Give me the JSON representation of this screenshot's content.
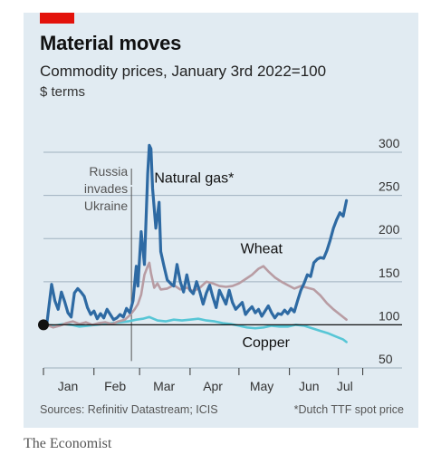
{
  "header": {
    "title": "Material moves",
    "subtitle": "Commodity prices, January 3rd 2022=100",
    "unit": "$ terms"
  },
  "footer": {
    "sources": "Sources: Refinitiv Datastream; ICIS",
    "note": "*Dutch TTF spot price"
  },
  "brand": "The Economist",
  "colors": {
    "background": "#e1ebf2",
    "accent": "#e3120b",
    "natural_gas": "#2e6aa3",
    "wheat": "#b89ca3",
    "copper": "#57c6d6"
  },
  "chart_data": {
    "type": "line",
    "title": "Material moves",
    "subtitle": "Commodity prices, January 3rd 2022=100",
    "ylabel": "$ terms",
    "xlabel": "",
    "ylim": [
      50,
      320
    ],
    "xlim": [
      "2022-01-01",
      "2022-07-19"
    ],
    "yticks": [
      50,
      100,
      150,
      200,
      250,
      300
    ],
    "xticks": [
      {
        "label": "Jan",
        "date": "2022-01-16"
      },
      {
        "label": "Feb",
        "date": "2022-02-14"
      },
      {
        "label": "Mar",
        "date": "2022-03-16"
      },
      {
        "label": "Apr",
        "date": "2022-04-15"
      },
      {
        "label": "May",
        "date": "2022-05-15"
      },
      {
        "label": "Jun",
        "date": "2022-06-13"
      },
      {
        "label": "Jul",
        "date": "2022-07-05"
      }
    ],
    "month_boundaries": [
      "2022-01-01",
      "2022-02-01",
      "2022-03-01",
      "2022-04-01",
      "2022-05-01",
      "2022-06-01",
      "2022-07-01"
    ],
    "grid": true,
    "baseline": 100,
    "annotations": [
      {
        "text": [
          "Russia",
          "invades",
          "Ukraine"
        ],
        "date": "2022-02-24"
      }
    ],
    "series": [
      {
        "name": "Natural gas*",
        "color": "#2e6aa3",
        "points": [
          [
            "2022-01-03",
            100
          ],
          [
            "2022-01-06",
            147
          ],
          [
            "2022-01-08",
            128
          ],
          [
            "2022-01-10",
            118
          ],
          [
            "2022-01-12",
            138
          ],
          [
            "2022-01-14",
            127
          ],
          [
            "2022-01-16",
            114
          ],
          [
            "2022-01-18",
            109
          ],
          [
            "2022-01-20",
            137
          ],
          [
            "2022-01-22",
            142
          ],
          [
            "2022-01-24",
            138
          ],
          [
            "2022-01-26",
            133
          ],
          [
            "2022-01-28",
            120
          ],
          [
            "2022-01-30",
            112
          ],
          [
            "2022-02-01",
            116
          ],
          [
            "2022-02-03",
            107
          ],
          [
            "2022-02-05",
            113
          ],
          [
            "2022-02-07",
            108
          ],
          [
            "2022-02-09",
            118
          ],
          [
            "2022-02-11",
            112
          ],
          [
            "2022-02-13",
            106
          ],
          [
            "2022-02-15",
            108
          ],
          [
            "2022-02-17",
            112
          ],
          [
            "2022-02-19",
            109
          ],
          [
            "2022-02-21",
            119
          ],
          [
            "2022-02-23",
            114
          ],
          [
            "2022-02-25",
            128
          ],
          [
            "2022-02-27",
            168
          ],
          [
            "2022-02-28",
            145
          ],
          [
            "2022-03-02",
            208
          ],
          [
            "2022-03-04",
            170
          ],
          [
            "2022-03-06",
            275
          ],
          [
            "2022-03-07",
            308
          ],
          [
            "2022-03-08",
            304
          ],
          [
            "2022-03-09",
            258
          ],
          [
            "2022-03-11",
            212
          ],
          [
            "2022-03-13",
            242
          ],
          [
            "2022-03-14",
            185
          ],
          [
            "2022-03-16",
            168
          ],
          [
            "2022-03-18",
            152
          ],
          [
            "2022-03-20",
            148
          ],
          [
            "2022-03-22",
            145
          ],
          [
            "2022-03-24",
            170
          ],
          [
            "2022-03-26",
            150
          ],
          [
            "2022-03-28",
            138
          ],
          [
            "2022-03-30",
            158
          ],
          [
            "2022-04-01",
            140
          ],
          [
            "2022-04-03",
            136
          ],
          [
            "2022-04-05",
            150
          ],
          [
            "2022-04-07",
            138
          ],
          [
            "2022-04-09",
            124
          ],
          [
            "2022-04-11",
            137
          ],
          [
            "2022-04-13",
            146
          ],
          [
            "2022-04-15",
            132
          ],
          [
            "2022-04-17",
            120
          ],
          [
            "2022-04-19",
            140
          ],
          [
            "2022-04-21",
            132
          ],
          [
            "2022-04-23",
            124
          ],
          [
            "2022-04-25",
            140
          ],
          [
            "2022-04-27",
            126
          ],
          [
            "2022-04-29",
            118
          ],
          [
            "2022-05-01",
            122
          ],
          [
            "2022-05-03",
            126
          ],
          [
            "2022-05-05",
            112
          ],
          [
            "2022-05-07",
            117
          ],
          [
            "2022-05-09",
            121
          ],
          [
            "2022-05-11",
            114
          ],
          [
            "2022-05-13",
            118
          ],
          [
            "2022-05-15",
            110
          ],
          [
            "2022-05-17",
            116
          ],
          [
            "2022-05-19",
            122
          ],
          [
            "2022-05-21",
            114
          ],
          [
            "2022-05-23",
            108
          ],
          [
            "2022-05-25",
            113
          ],
          [
            "2022-05-27",
            112
          ],
          [
            "2022-05-29",
            117
          ],
          [
            "2022-05-31",
            113
          ],
          [
            "2022-06-02",
            119
          ],
          [
            "2022-06-04",
            115
          ],
          [
            "2022-06-06",
            128
          ],
          [
            "2022-06-08",
            140
          ],
          [
            "2022-06-10",
            148
          ],
          [
            "2022-06-12",
            158
          ],
          [
            "2022-06-14",
            156
          ],
          [
            "2022-06-16",
            172
          ],
          [
            "2022-06-18",
            176
          ],
          [
            "2022-06-20",
            178
          ],
          [
            "2022-06-22",
            177
          ],
          [
            "2022-06-24",
            186
          ],
          [
            "2022-06-26",
            198
          ],
          [
            "2022-06-28",
            212
          ],
          [
            "2022-06-30",
            222
          ],
          [
            "2022-07-02",
            230
          ],
          [
            "2022-07-04",
            226
          ],
          [
            "2022-07-06",
            244
          ]
        ]
      },
      {
        "name": "Wheat",
        "color": "#b89ca3",
        "points": [
          [
            "2022-01-03",
            100
          ],
          [
            "2022-01-07",
            97
          ],
          [
            "2022-01-11",
            99
          ],
          [
            "2022-01-15",
            102
          ],
          [
            "2022-01-19",
            104
          ],
          [
            "2022-01-23",
            101
          ],
          [
            "2022-01-27",
            103
          ],
          [
            "2022-01-31",
            100
          ],
          [
            "2022-02-04",
            102
          ],
          [
            "2022-02-08",
            103
          ],
          [
            "2022-02-12",
            101
          ],
          [
            "2022-02-16",
            104
          ],
          [
            "2022-02-20",
            106
          ],
          [
            "2022-02-23",
            111
          ],
          [
            "2022-02-26",
            118
          ],
          [
            "2022-02-28",
            124
          ],
          [
            "2022-03-02",
            135
          ],
          [
            "2022-03-04",
            158
          ],
          [
            "2022-03-06",
            168
          ],
          [
            "2022-03-07",
            172
          ],
          [
            "2022-03-08",
            160
          ],
          [
            "2022-03-10",
            143
          ],
          [
            "2022-03-12",
            148
          ],
          [
            "2022-03-14",
            141
          ],
          [
            "2022-03-18",
            142
          ],
          [
            "2022-03-22",
            146
          ],
          [
            "2022-03-26",
            141
          ],
          [
            "2022-03-30",
            143
          ],
          [
            "2022-04-03",
            139
          ],
          [
            "2022-04-07",
            143
          ],
          [
            "2022-04-11",
            150
          ],
          [
            "2022-04-15",
            148
          ],
          [
            "2022-04-19",
            145
          ],
          [
            "2022-04-23",
            144
          ],
          [
            "2022-04-27",
            145
          ],
          [
            "2022-05-01",
            148
          ],
          [
            "2022-05-05",
            153
          ],
          [
            "2022-05-09",
            158
          ],
          [
            "2022-05-13",
            165
          ],
          [
            "2022-05-16",
            168
          ],
          [
            "2022-05-19",
            162
          ],
          [
            "2022-05-23",
            155
          ],
          [
            "2022-05-27",
            150
          ],
          [
            "2022-05-31",
            146
          ],
          [
            "2022-06-04",
            142
          ],
          [
            "2022-06-08",
            145
          ],
          [
            "2022-06-12",
            143
          ],
          [
            "2022-06-16",
            141
          ],
          [
            "2022-06-20",
            134
          ],
          [
            "2022-06-24",
            125
          ],
          [
            "2022-06-28",
            118
          ],
          [
            "2022-07-02",
            112
          ],
          [
            "2022-07-06",
            106
          ]
        ]
      },
      {
        "name": "Copper",
        "color": "#57c6d6",
        "points": [
          [
            "2022-01-03",
            100
          ],
          [
            "2022-01-08",
            99
          ],
          [
            "2022-01-13",
            101
          ],
          [
            "2022-01-18",
            100
          ],
          [
            "2022-01-23",
            98
          ],
          [
            "2022-01-28",
            99
          ],
          [
            "2022-02-02",
            100
          ],
          [
            "2022-02-07",
            101
          ],
          [
            "2022-02-12",
            102
          ],
          [
            "2022-02-17",
            103
          ],
          [
            "2022-02-22",
            104
          ],
          [
            "2022-02-27",
            106
          ],
          [
            "2022-03-03",
            107
          ],
          [
            "2022-03-07",
            109
          ],
          [
            "2022-03-12",
            105
          ],
          [
            "2022-03-17",
            104
          ],
          [
            "2022-03-22",
            106
          ],
          [
            "2022-03-27",
            105
          ],
          [
            "2022-04-01",
            106
          ],
          [
            "2022-04-06",
            107
          ],
          [
            "2022-04-11",
            105
          ],
          [
            "2022-04-16",
            104
          ],
          [
            "2022-04-21",
            102
          ],
          [
            "2022-04-26",
            101
          ],
          [
            "2022-05-01",
            99
          ],
          [
            "2022-05-06",
            97
          ],
          [
            "2022-05-11",
            96
          ],
          [
            "2022-05-16",
            97
          ],
          [
            "2022-05-21",
            99
          ],
          [
            "2022-05-26",
            98
          ],
          [
            "2022-05-31",
            98
          ],
          [
            "2022-06-05",
            100
          ],
          [
            "2022-06-10",
            99
          ],
          [
            "2022-06-15",
            96
          ],
          [
            "2022-06-20",
            93
          ],
          [
            "2022-06-25",
            90
          ],
          [
            "2022-06-30",
            86
          ],
          [
            "2022-07-04",
            83
          ],
          [
            "2022-07-06",
            80
          ]
        ]
      }
    ],
    "series_labels": [
      {
        "series": "Natural gas*",
        "date": "2022-03-10",
        "value": 265
      },
      {
        "series": "Wheat",
        "date": "2022-05-02",
        "value": 183
      },
      {
        "series": "Copper",
        "date": "2022-05-03",
        "value": 74
      }
    ]
  }
}
